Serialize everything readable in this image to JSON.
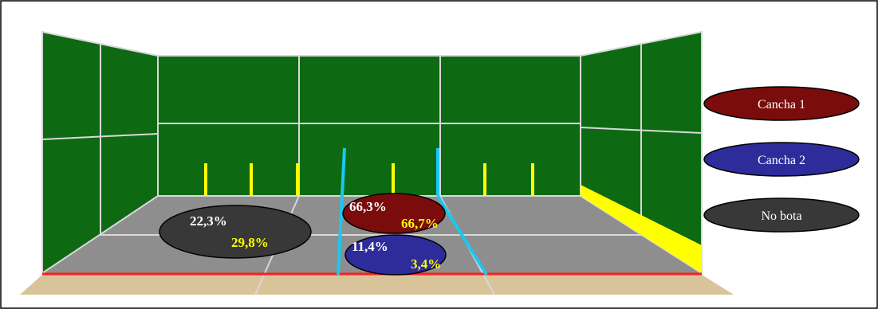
{
  "colors": {
    "wall": "#0d6a13",
    "floor": "#8e8e8e",
    "sand": "#d9c49a",
    "grid": "#d8d8d8",
    "post": "#ffff00",
    "service_line": "#1ac8f0",
    "baseline": "#ff1a1a",
    "cancha1": "#7a0c0c",
    "cancha2": "#2d2c9a",
    "no_bota": "#383838",
    "label_white": "#ffffff",
    "label_yellow": "#ffff00"
  },
  "zones": {
    "no_bota": {
      "value_a": "22,3%",
      "value_b": "29,8%"
    },
    "cancha1": {
      "value_a": "66,3%",
      "value_b": "66,7%"
    },
    "cancha2": {
      "value_a": "11,4%",
      "value_b": "3,4%"
    }
  },
  "legend": {
    "cancha1": "Cancha 1",
    "cancha2": "Cancha 2",
    "no_bota": "No bota"
  }
}
